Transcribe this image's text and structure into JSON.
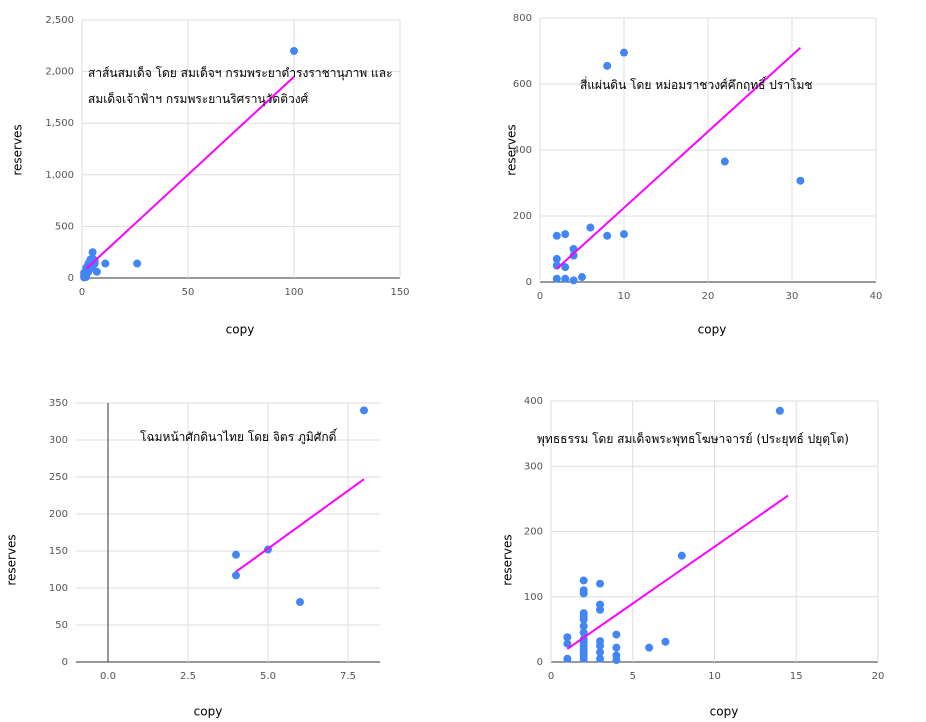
{
  "chart_data": [
    {
      "type": "scatter",
      "title": "สาส์นสมเด็จ โดย สมเด็จฯ กรมพระยาดำรงราชานุภาพ และ สมเด็จเจ้าฟ้าฯ กรมพระยานริศรานุวัดติวงศ์",
      "xlabel": "copy",
      "ylabel": "reserves",
      "color": "#4285f4",
      "grid": true,
      "x": [
        100,
        26,
        11,
        5,
        5,
        4,
        6,
        3,
        4,
        2,
        3,
        7,
        1,
        2,
        1,
        2,
        3,
        5,
        6,
        1,
        2
      ],
      "values": [
        2200,
        140,
        140,
        250,
        190,
        180,
        140,
        140,
        110,
        100,
        80,
        60,
        50,
        40,
        20,
        10,
        60,
        100,
        170,
        5,
        30
      ],
      "trendline": {
        "x": [
          2,
          100
        ],
        "values": [
          90,
          1950
        ],
        "color": "#ff00ff"
      },
      "xlim": [
        0,
        150
      ],
      "xticks": [
        0,
        50,
        100,
        150
      ],
      "ylim": [
        0,
        2500
      ],
      "yticks": [
        0,
        500,
        {
          "value": 1000,
          "label": "1,000"
        },
        {
          "value": 1500,
          "label": "1,500"
        },
        {
          "value": 2000,
          "label": "2,000"
        },
        {
          "value": 2500,
          "label": "2,500"
        }
      ]
    },
    {
      "type": "scatter",
      "title": "สี่แผ่นดิน โดย หม่อมราชวงศ์คึกฤทธิ์ ปราโมช",
      "xlabel": "copy",
      "ylabel": "reserves",
      "color": "#4285f4",
      "grid": true,
      "x": [
        2,
        3,
        2,
        2,
        3,
        2,
        3,
        4,
        4,
        4,
        5,
        6,
        8,
        10,
        8,
        10,
        22,
        31
      ],
      "values": [
        140,
        145,
        70,
        50,
        45,
        10,
        10,
        5,
        100,
        80,
        15,
        165,
        140,
        145,
        655,
        695,
        365,
        307
      ],
      "trendline": {
        "x": [
          2,
          31
        ],
        "values": [
          40,
          710
        ],
        "color": "#ff00ff"
      },
      "xlim": [
        0,
        40
      ],
      "xticks": [
        0,
        10,
        20,
        30,
        40
      ],
      "ylim": [
        0,
        800
      ],
      "yticks": [
        0,
        200,
        400,
        600,
        800
      ]
    },
    {
      "type": "scatter",
      "title": "โฉมหน้าศักดินาไทย โดย จิตร ภูมิศักดิ์",
      "xlabel": "copy",
      "ylabel": "reserves",
      "color": "#4285f4",
      "grid": true,
      "x": [
        4,
        4,
        5,
        6,
        8
      ],
      "values": [
        145,
        117,
        152,
        81,
        340
      ],
      "trendline": {
        "x": [
          4,
          8
        ],
        "values": [
          122,
          247
        ],
        "color": "#ff00ff"
      },
      "xlim": [
        -1,
        8.5
      ],
      "xticks": [
        {
          "value": 0,
          "label": "0.0"
        },
        {
          "value": 2.5,
          "label": "2.5"
        },
        {
          "value": 5,
          "label": "5.0"
        },
        {
          "value": 7.5,
          "label": "7.5"
        }
      ],
      "ylim": [
        0,
        350
      ],
      "yticks": [
        0,
        50,
        100,
        150,
        200,
        250,
        300,
        350
      ]
    },
    {
      "type": "scatter",
      "title": "พุทธธรรม โดย สมเด็จพระพุทธโฆษาจารย์ (ประยุทธ์ ปยุตฺโต)",
      "xlabel": "copy",
      "ylabel": "reserves",
      "color": "#4285f4",
      "grid": true,
      "x": [
        1,
        1,
        1,
        2,
        2,
        2,
        2,
        2,
        2,
        2,
        2,
        2,
        2,
        2,
        2,
        2,
        2,
        2,
        3,
        3,
        3,
        3,
        3,
        3,
        3,
        4,
        4,
        4,
        4,
        6,
        7,
        8,
        14
      ],
      "values": [
        38,
        28,
        5,
        125,
        110,
        105,
        75,
        70,
        65,
        55,
        45,
        35,
        30,
        25,
        20,
        15,
        10,
        5,
        120,
        88,
        80,
        32,
        25,
        15,
        5,
        42,
        22,
        10,
        3,
        22,
        31,
        163,
        385
      ],
      "trendline": {
        "x": [
          1,
          14.5
        ],
        "values": [
          20,
          255
        ],
        "color": "#ff00ff"
      },
      "xlim": [
        0,
        20
      ],
      "xticks": [
        0,
        5,
        10,
        15,
        20
      ],
      "ylim": [
        0,
        400
      ],
      "yticks": [
        0,
        100,
        200,
        300,
        400
      ]
    }
  ]
}
